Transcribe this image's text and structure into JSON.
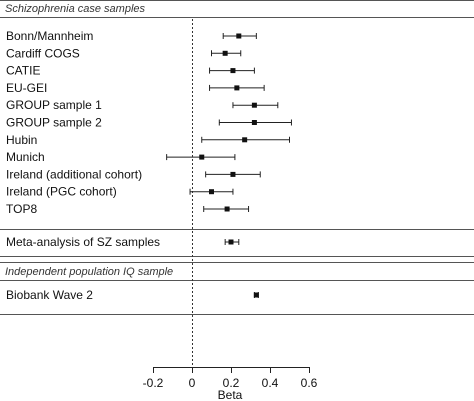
{
  "chart_data": {
    "type": "forest",
    "xlabel": "Beta",
    "xlim": [
      -0.2,
      0.6
    ],
    "ticks": [
      -0.2,
      0,
      0.2,
      0.4,
      0.6
    ],
    "tick_labels": [
      "-0.2",
      "0",
      "0.2",
      "0.4",
      "0.6"
    ],
    "reference_line": 0,
    "sections": [
      {
        "title": "Schizophrenia case samples",
        "studies": [
          {
            "name": "Bonn/Mannheim",
            "beta": 0.24,
            "lo": 0.16,
            "hi": 0.33
          },
          {
            "name": "Cardiff COGS",
            "beta": 0.17,
            "lo": 0.1,
            "hi": 0.25
          },
          {
            "name": "CATIE",
            "beta": 0.21,
            "lo": 0.09,
            "hi": 0.32
          },
          {
            "name": "EU-GEI",
            "beta": 0.23,
            "lo": 0.09,
            "hi": 0.37
          },
          {
            "name": "GROUP sample 1",
            "beta": 0.32,
            "lo": 0.21,
            "hi": 0.44
          },
          {
            "name": "GROUP sample 2",
            "beta": 0.32,
            "lo": 0.14,
            "hi": 0.51
          },
          {
            "name": "Hubin",
            "beta": 0.27,
            "lo": 0.05,
            "hi": 0.5
          },
          {
            "name": "Munich",
            "beta": 0.05,
            "lo": -0.13,
            "hi": 0.22
          },
          {
            "name": "Ireland (additional cohort)",
            "beta": 0.21,
            "lo": 0.07,
            "hi": 0.35
          },
          {
            "name": "Ireland (PGC cohort)",
            "beta": 0.1,
            "lo": -0.01,
            "hi": 0.21
          },
          {
            "name": "TOP8",
            "beta": 0.18,
            "lo": 0.06,
            "hi": 0.29
          }
        ]
      },
      {
        "title": "",
        "studies": [
          {
            "name": "Meta-analysis of SZ samples",
            "beta": 0.2,
            "lo": 0.17,
            "hi": 0.24
          }
        ]
      },
      {
        "title": "Independent population IQ sample",
        "studies": [
          {
            "name": "Biobank Wave 2",
            "beta": 0.33,
            "lo": 0.32,
            "hi": 0.34
          }
        ]
      }
    ]
  }
}
